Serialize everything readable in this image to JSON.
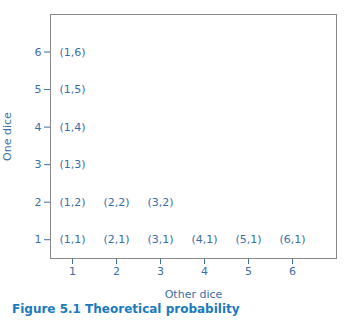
{
  "chart_data": {
    "type": "text",
    "title": "Figure 5.1  Theoretical probability",
    "xlabel": "Other dice",
    "ylabel": "One dice",
    "xlim": [
      0.5,
      7.0
    ],
    "ylim": [
      0.5,
      7.0
    ],
    "xticks": [
      1,
      2,
      3,
      4,
      5,
      6
    ],
    "yticks": [
      1,
      2,
      3,
      4,
      5,
      6
    ],
    "color": "#3c6ea6",
    "grid": false,
    "annotations": [
      {
        "x": 1,
        "y": 1,
        "text": "(1,1)"
      },
      {
        "x": 2,
        "y": 1,
        "text": "(2,1)"
      },
      {
        "x": 3,
        "y": 1,
        "text": "(3,1)"
      },
      {
        "x": 4,
        "y": 1,
        "text": "(4,1)"
      },
      {
        "x": 5,
        "y": 1,
        "text": "(5,1)"
      },
      {
        "x": 6,
        "y": 1,
        "text": "(6,1)"
      },
      {
        "x": 1,
        "y": 2,
        "text": "(1,2)"
      },
      {
        "x": 2,
        "y": 2,
        "text": "(2,2)"
      },
      {
        "x": 3,
        "y": 2,
        "text": "(3,2)"
      },
      {
        "x": 1,
        "y": 3,
        "text": "(1,3)"
      },
      {
        "x": 1,
        "y": 4,
        "text": "(1,4)"
      },
      {
        "x": 1,
        "y": 5,
        "text": "(1,5)"
      },
      {
        "x": 1,
        "y": 6,
        "text": "(1,6)"
      }
    ]
  }
}
